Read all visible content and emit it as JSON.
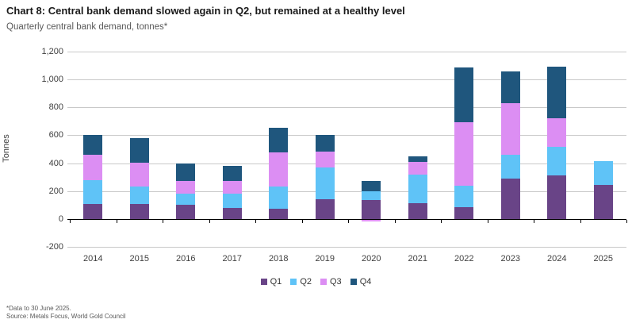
{
  "title": "Chart 8: Central bank demand slowed again in Q2, but remained at a healthy level",
  "subtitle": "Quarterly central bank demand, tonnes*",
  "footnotes": {
    "line1": "*Data to 30 June 2025.",
    "line2": "Source: Metals Focus, World Gold Council"
  },
  "colors": {
    "q1": "#694487",
    "q2": "#5fc3f7",
    "q3": "#dc8ef3",
    "q4": "#1f567d",
    "gridline": "#c9c9c9",
    "axis": "#000000"
  },
  "chart_data": {
    "type": "bar",
    "stacked": true,
    "title": "Chart 8: Central bank demand slowed again in Q2, but remained at a healthy level",
    "subtitle": "Quarterly central bank demand, tonnes*",
    "xlabel": "",
    "ylabel": "Tonnes",
    "ylim": [
      -200,
      1200
    ],
    "ytick_interval": 200,
    "ytick_labels": [
      "-200",
      "0",
      "200",
      "400",
      "600",
      "800",
      "1,000",
      "1,200"
    ],
    "grid": true,
    "legend_position": "bottom",
    "categories": [
      "2014",
      "2015",
      "2016",
      "2017",
      "2018",
      "2019",
      "2020",
      "2021",
      "2022",
      "2023",
      "2024",
      "2025"
    ],
    "series": [
      {
        "name": "Q1",
        "color": "#694487",
        "values": [
          110,
          105,
          100,
          80,
          75,
          140,
          135,
          115,
          85,
          290,
          310,
          245
        ]
      },
      {
        "name": "Q2",
        "color": "#5fc3f7",
        "values": [
          170,
          130,
          80,
          100,
          155,
          230,
          65,
          205,
          155,
          170,
          205,
          170
        ]
      },
      {
        "name": "Q3",
        "color": "#dc8ef3",
        "values": [
          180,
          170,
          95,
          95,
          245,
          115,
          -20,
          90,
          455,
          370,
          205,
          0
        ]
      },
      {
        "name": "Q4",
        "color": "#1f567d",
        "values": [
          140,
          175,
          120,
          105,
          180,
          120,
          75,
          40,
          390,
          225,
          370,
          0
        ]
      }
    ]
  }
}
